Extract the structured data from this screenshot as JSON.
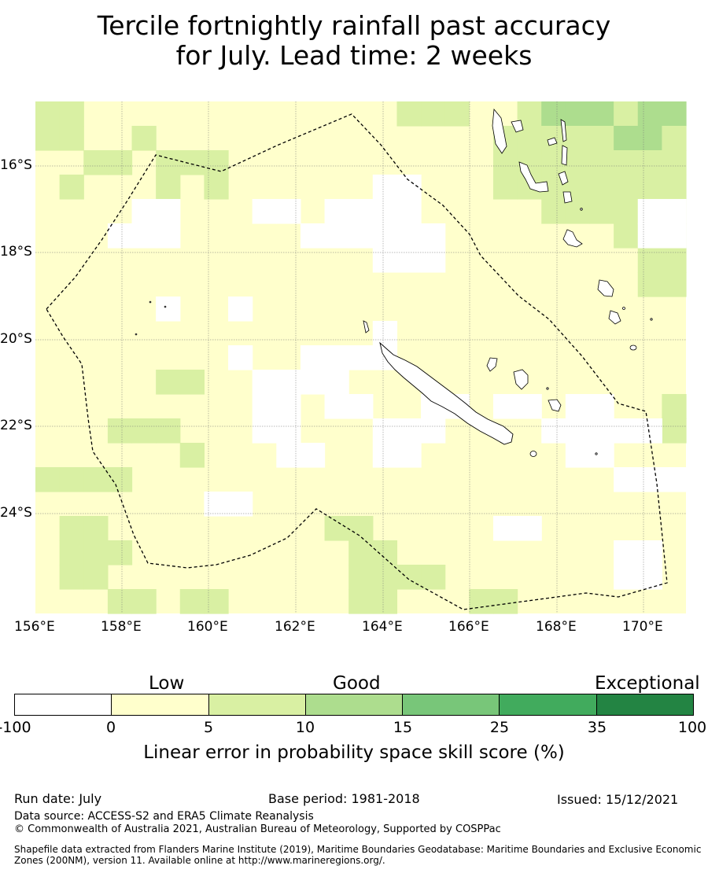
{
  "title_lines": [
    "Tercile fortnightly rainfall past accuracy",
    "for July. Lead time: 2 weeks"
  ],
  "map": {
    "lon_labels": [
      "156°E",
      "158°E",
      "160°E",
      "162°E",
      "164°E",
      "166°E",
      "168°E",
      "170°E"
    ],
    "lat_labels": [
      "16°S",
      "18°S",
      "20°S",
      "22°S",
      "24°S"
    ]
  },
  "colorbar": {
    "categories": [
      "Low",
      "Good",
      "Exceptional"
    ],
    "ticks": [
      "-100",
      "0",
      "5",
      "10",
      "15",
      "25",
      "35",
      "100"
    ],
    "colors": [
      "#ffffff",
      "#ffffcc",
      "#d9f0a3",
      "#addd8e",
      "#78c679",
      "#41ab5d",
      "#238443"
    ],
    "label": "Linear error in probability space skill score (%)"
  },
  "footer": {
    "run_date": "Run date: July",
    "base_period": "Base period: 1981-2018",
    "issued": "Issued: 15/12/2021",
    "data_source": "Data source: ACCESS-S2 and ERA5 Climate Reanalysis",
    "copyright": "© Commonwealth of Australia 2021, Australian Bureau of Meteorology, Supported by COSPPac",
    "shapefile": "Shapefile data extracted from Flanders Marine Institute (2019), Maritime Boundaries Geodatabase: Maritime Boundaries and Exclusive Economic Zones (200NM), version 11. Available online at http://www.marineregions.org/."
  }
}
